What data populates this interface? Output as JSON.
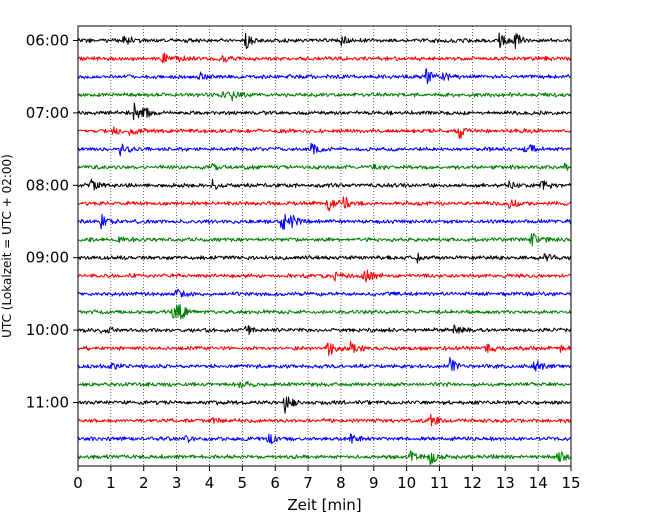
{
  "chart_data": {
    "type": "line",
    "xlabel": "Zeit  [min]",
    "ylabel": "UTC (Lokalzeit = UTC + 02:00)",
    "xlim": [
      0,
      15
    ],
    "x_ticks": [
      "0",
      "1",
      "2",
      "3",
      "4",
      "5",
      "6",
      "7",
      "8",
      "9",
      "10",
      "11",
      "12",
      "13",
      "14",
      "15"
    ],
    "y_tick_labels": [
      "06:00",
      "07:00",
      "08:00",
      "09:00",
      "10:00",
      "11:00"
    ],
    "rows_per_hour": 4,
    "row_minutes": 15,
    "start_time": "06:00",
    "end_time": "12:00",
    "grid": "vertical dotted",
    "colors": [
      "#000000",
      "#ff0000",
      "#0000ff",
      "#008000"
    ],
    "traces": [
      {
        "start": "06:00",
        "color": "#000000",
        "events": [
          [
            1.4,
            0.6
          ],
          [
            5.1,
            0.9
          ],
          [
            8.0,
            0.5
          ],
          [
            12.8,
            0.8
          ],
          [
            13.3,
            0.9
          ]
        ]
      },
      {
        "start": "06:15",
        "color": "#ff0000",
        "events": [
          [
            2.6,
            0.6
          ],
          [
            3.0,
            0.5
          ],
          [
            4.4,
            0.4
          ]
        ]
      },
      {
        "start": "06:30",
        "color": "#0000ff",
        "events": [
          [
            3.7,
            0.4
          ],
          [
            10.6,
            0.8
          ],
          [
            11.1,
            0.6
          ]
        ]
      },
      {
        "start": "06:45",
        "color": "#008000",
        "events": [
          [
            4.4,
            0.6
          ],
          [
            4.7,
            0.4
          ]
        ]
      },
      {
        "start": "07:00",
        "color": "#000000",
        "events": [
          [
            1.7,
            1.0
          ],
          [
            2.0,
            0.6
          ]
        ]
      },
      {
        "start": "07:15",
        "color": "#ff0000",
        "events": [
          [
            1.0,
            0.5
          ],
          [
            1.6,
            0.6
          ],
          [
            11.6,
            0.8
          ]
        ]
      },
      {
        "start": "07:30",
        "color": "#0000ff",
        "events": [
          [
            1.3,
            0.7
          ],
          [
            7.1,
            0.7
          ],
          [
            13.6,
            1.0
          ]
        ]
      },
      {
        "start": "07:45",
        "color": "#008000",
        "events": [
          [
            4.1,
            0.3
          ],
          [
            9.0,
            0.3
          ],
          [
            14.8,
            0.3
          ]
        ]
      },
      {
        "start": "08:00",
        "color": "#000000",
        "events": [
          [
            0.4,
            0.6
          ],
          [
            4.1,
            0.5
          ],
          [
            13.1,
            0.5
          ],
          [
            14.1,
            0.6
          ]
        ]
      },
      {
        "start": "08:15",
        "color": "#ff0000",
        "events": [
          [
            7.6,
            0.9
          ],
          [
            8.1,
            0.7
          ],
          [
            13.1,
            0.6
          ]
        ]
      },
      {
        "start": "08:30",
        "color": "#0000ff",
        "events": [
          [
            0.7,
            0.8
          ],
          [
            6.2,
            1.0
          ],
          [
            6.5,
            0.7
          ]
        ]
      },
      {
        "start": "08:45",
        "color": "#008000",
        "events": [
          [
            1.2,
            0.4
          ],
          [
            13.8,
            0.7
          ]
        ]
      },
      {
        "start": "09:00",
        "color": "#000000",
        "events": [
          [
            10.3,
            0.5
          ],
          [
            14.2,
            0.4
          ]
        ]
      },
      {
        "start": "09:15",
        "color": "#ff0000",
        "events": [
          [
            7.8,
            0.7
          ],
          [
            8.7,
            0.9
          ]
        ]
      },
      {
        "start": "09:30",
        "color": "#0000ff",
        "events": [
          [
            3.0,
            0.5
          ]
        ]
      },
      {
        "start": "09:45",
        "color": "#008000",
        "events": [
          [
            2.9,
            1.0
          ],
          [
            3.1,
            0.7
          ]
        ]
      },
      {
        "start": "10:00",
        "color": "#000000",
        "events": [
          [
            0.7,
            0.5
          ],
          [
            5.1,
            0.6
          ],
          [
            11.4,
            0.6
          ]
        ]
      },
      {
        "start": "10:15",
        "color": "#ff0000",
        "events": [
          [
            7.6,
            1.0
          ],
          [
            8.3,
            0.9
          ],
          [
            12.4,
            0.6
          ],
          [
            14.7,
            0.8
          ]
        ]
      },
      {
        "start": "10:30",
        "color": "#0000ff",
        "events": [
          [
            1.0,
            0.4
          ],
          [
            11.3,
            1.0
          ],
          [
            13.9,
            0.8
          ]
        ]
      },
      {
        "start": "10:45",
        "color": "#008000",
        "events": [
          [
            4.9,
            0.5
          ]
        ]
      },
      {
        "start": "11:00",
        "color": "#000000",
        "events": [
          [
            6.3,
            1.0
          ]
        ]
      },
      {
        "start": "11:15",
        "color": "#ff0000",
        "events": [
          [
            4.1,
            0.5
          ],
          [
            10.7,
            0.6
          ]
        ]
      },
      {
        "start": "11:30",
        "color": "#0000ff",
        "events": [
          [
            3.3,
            0.4
          ],
          [
            5.8,
            0.8
          ],
          [
            8.3,
            0.5
          ]
        ]
      },
      {
        "start": "11:45",
        "color": "#008000",
        "events": [
          [
            10.1,
            0.7
          ],
          [
            10.7,
            0.9
          ],
          [
            14.6,
            0.7
          ]
        ]
      }
    ]
  }
}
